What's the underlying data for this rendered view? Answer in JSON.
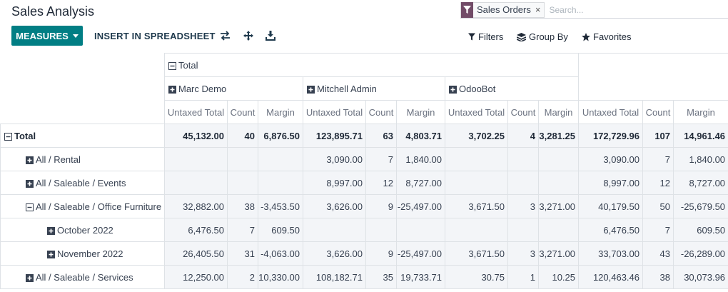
{
  "title": "Sales Analysis",
  "search": {
    "facet_label": "Sales Orders",
    "facet_close": "×",
    "placeholder": "Search..."
  },
  "toolbar": {
    "measures_label": "MEASURES",
    "insert_label": "INSERT IN SPREADSHEET",
    "filters_label": "Filters",
    "groupby_label": "Group By",
    "favorites_label": "Favorites"
  },
  "colors": {
    "primary": "#017e84",
    "facet": "#714b67"
  },
  "pivot": {
    "col_total_label": "Total",
    "col_groups": [
      "Marc Demo",
      "Mitchell Admin",
      "OdooBot"
    ],
    "measures": [
      "Untaxed Total",
      "Count",
      "Margin"
    ],
    "rows": [
      {
        "label": "Total",
        "icon": "minus",
        "indent": 0,
        "values": [
          "45,132.00",
          "40",
          "6,876.50",
          "123,895.71",
          "63",
          "4,803.71",
          "3,702.25",
          "4",
          "3,281.25",
          "172,729.96",
          "107",
          "14,961.46"
        ]
      },
      {
        "label": "All / Rental",
        "icon": "plus",
        "indent": 1,
        "values": [
          "",
          "",
          "",
          "3,090.00",
          "7",
          "1,840.00",
          "",
          "",
          "",
          "3,090.00",
          "7",
          "1,840.00"
        ]
      },
      {
        "label": "All / Saleable / Events",
        "icon": "plus",
        "indent": 1,
        "values": [
          "",
          "",
          "",
          "8,997.00",
          "12",
          "8,727.00",
          "",
          "",
          "",
          "8,997.00",
          "12",
          "8,727.00"
        ]
      },
      {
        "label": "All / Saleable / Office Furniture",
        "icon": "minus",
        "indent": 1,
        "values": [
          "32,882.00",
          "38",
          "-3,453.50",
          "3,626.00",
          "9",
          "-25,497.00",
          "3,671.50",
          "3",
          "3,271.00",
          "40,179.50",
          "50",
          "-25,679.50"
        ]
      },
      {
        "label": "October 2022",
        "icon": "plus",
        "indent": 2,
        "values": [
          "6,476.50",
          "7",
          "609.50",
          "",
          "",
          "",
          "",
          "",
          "",
          "6,476.50",
          "7",
          "609.50"
        ]
      },
      {
        "label": "November 2022",
        "icon": "plus",
        "indent": 2,
        "values": [
          "26,405.50",
          "31",
          "-4,063.00",
          "3,626.00",
          "9",
          "-25,497.00",
          "3,671.50",
          "3",
          "3,271.00",
          "33,703.00",
          "43",
          "-26,289.00"
        ]
      },
      {
        "label": "All / Saleable / Services",
        "icon": "plus",
        "indent": 1,
        "values": [
          "12,250.00",
          "2",
          "10,330.00",
          "108,182.71",
          "35",
          "19,733.71",
          "30.75",
          "1",
          "10.25",
          "120,463.46",
          "38",
          "30,073.96"
        ]
      }
    ]
  }
}
